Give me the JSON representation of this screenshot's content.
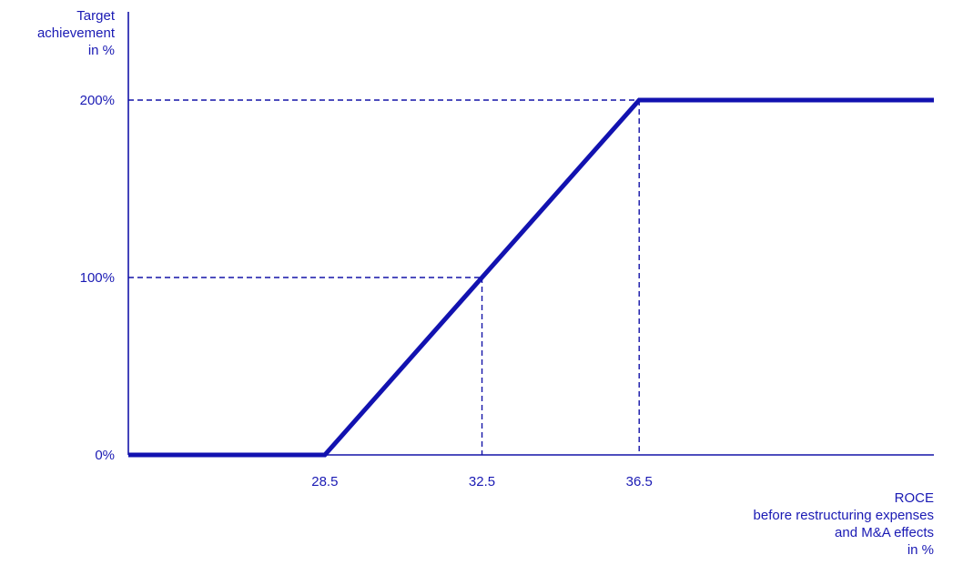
{
  "chart_data": {
    "type": "line",
    "ylabel": [
      "Target",
      "achievement",
      "in %"
    ],
    "xlabel": [
      "ROCE",
      "before restructuring expenses",
      "and M&A effects",
      "in %"
    ],
    "xlim": [
      23.5,
      44.0
    ],
    "ylim": [
      0,
      200
    ],
    "x_ticks": [
      {
        "value": 28.5,
        "label": "28.5"
      },
      {
        "value": 32.5,
        "label": "32.5"
      },
      {
        "value": 36.5,
        "label": "36.5"
      }
    ],
    "y_ticks": [
      {
        "value": 0,
        "label": "0%"
      },
      {
        "value": 100,
        "label": "100%"
      },
      {
        "value": 200,
        "label": "200%"
      }
    ],
    "series": [
      {
        "points": [
          {
            "x": 23.5,
            "y": 0
          },
          {
            "x": 28.5,
            "y": 0
          },
          {
            "x": 32.5,
            "y": 100
          },
          {
            "x": 36.5,
            "y": 200
          },
          {
            "x": 44.0,
            "y": 200
          }
        ]
      }
    ],
    "reference_lines": [
      {
        "x": 32.5,
        "y": 100
      },
      {
        "x": 36.5,
        "y": 200
      }
    ],
    "grid": false,
    "colors": {
      "line": "#1212b0",
      "axis": "#1414a8",
      "text": "#1a1ab4"
    }
  }
}
